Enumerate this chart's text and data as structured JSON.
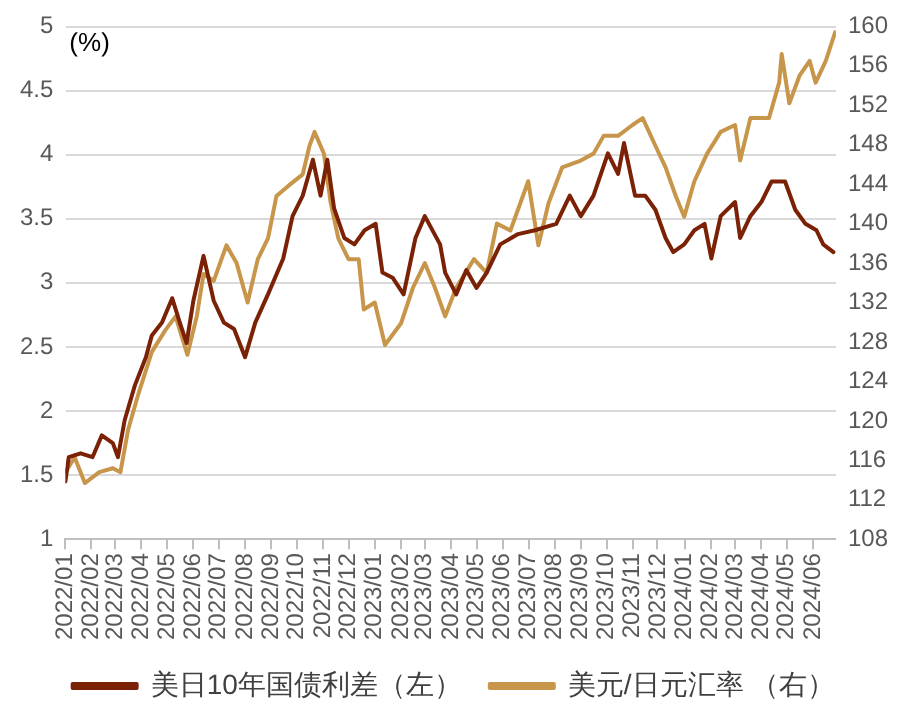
{
  "chart_data": {
    "type": "line",
    "ylabel": "(%)",
    "xlim": [
      "2022-01-01",
      "2024-06-28"
    ],
    "xticks": [
      {
        "value": "2022-01",
        "label": "2022/01"
      },
      {
        "value": "2022-02",
        "label": "2022/02"
      },
      {
        "value": "2022-03",
        "label": "2022/03"
      },
      {
        "value": "2022-04",
        "label": "2022/04"
      },
      {
        "value": "2022-05",
        "label": "2022/05"
      },
      {
        "value": "2022-06",
        "label": "2022/06"
      },
      {
        "value": "2022-07",
        "label": "2022/07"
      },
      {
        "value": "2022-08",
        "label": "2022/08"
      },
      {
        "value": "2022-09",
        "label": "2022/09"
      },
      {
        "value": "2022-10",
        "label": "2022/10"
      },
      {
        "value": "2022-11",
        "label": "2022/11"
      },
      {
        "value": "2022-12",
        "label": "2022/12"
      },
      {
        "value": "2023-01",
        "label": "2023/01"
      },
      {
        "value": "2023-02",
        "label": "2023/02"
      },
      {
        "value": "2023-03",
        "label": "2023/03"
      },
      {
        "value": "2023-04",
        "label": "2023/04"
      },
      {
        "value": "2023-05",
        "label": "2023/05"
      },
      {
        "value": "2023-06",
        "label": "2023/06"
      },
      {
        "value": "2023-07",
        "label": "2023/07"
      },
      {
        "value": "2023-08",
        "label": "2023/08"
      },
      {
        "value": "2023-09",
        "label": "2023/09"
      },
      {
        "value": "2023-10",
        "label": "2023/10"
      },
      {
        "value": "2023-11",
        "label": "2023/11"
      },
      {
        "value": "2023-12",
        "label": "2023/12"
      },
      {
        "value": "2024-01",
        "label": "2024/01"
      },
      {
        "value": "2024-02",
        "label": "2024/02"
      },
      {
        "value": "2024-03",
        "label": "2024/03"
      },
      {
        "value": "2024-04",
        "label": "2024/04"
      },
      {
        "value": "2024-05",
        "label": "2024/05"
      },
      {
        "value": "2024-06",
        "label": "2024/06"
      }
    ],
    "ylim": [
      1,
      5
    ],
    "yticks": [
      1,
      1.5,
      2,
      2.5,
      3,
      3.5,
      4,
      4.5,
      5
    ],
    "y2lim": [
      108,
      160
    ],
    "y2ticks": [
      108,
      112,
      116,
      120,
      124,
      128,
      132,
      136,
      140,
      144,
      148,
      152,
      156,
      160
    ],
    "grid": "y",
    "legend": "bottom",
    "marker": "none",
    "line_style": "solid",
    "series": [
      {
        "name": "美日10年国债利差（左）",
        "color": "#7b2106",
        "x": [
          "2022-01-01",
          "2022-01-05",
          "2022-01-19",
          "2022-02-02",
          "2022-02-13",
          "2022-02-26",
          "2022-03-04",
          "2022-03-12",
          "2022-03-24",
          "2022-04-06",
          "2022-04-13",
          "2022-04-25",
          "2022-05-07",
          "2022-05-16",
          "2022-05-24",
          "2022-06-01",
          "2022-06-13",
          "2022-06-25",
          "2022-07-07",
          "2022-07-19",
          "2022-08-01",
          "2022-08-13",
          "2022-08-28",
          "2022-09-15",
          "2022-09-26",
          "2022-10-08",
          "2022-10-20",
          "2022-10-29",
          "2022-11-06",
          "2022-11-14",
          "2022-11-26",
          "2022-12-08",
          "2022-12-20",
          "2023-01-02",
          "2023-01-10",
          "2023-01-22",
          "2023-02-04",
          "2023-02-18",
          "2023-03-01",
          "2023-03-19",
          "2023-03-25",
          "2023-04-07",
          "2023-04-19",
          "2023-05-01",
          "2023-05-13",
          "2023-05-29",
          "2023-06-19",
          "2023-07-09",
          "2023-08-03",
          "2023-08-19",
          "2023-09-01",
          "2023-09-16",
          "2023-10-03",
          "2023-10-15",
          "2023-10-22",
          "2023-11-04",
          "2023-11-16",
          "2023-11-28",
          "2023-12-10",
          "2023-12-19",
          "2024-01-01",
          "2024-01-13",
          "2024-01-25",
          "2024-02-02",
          "2024-02-13",
          "2024-03-01",
          "2024-03-07",
          "2024-03-19",
          "2024-04-01",
          "2024-04-13",
          "2024-04-29",
          "2024-05-11",
          "2024-05-23",
          "2024-06-05",
          "2024-06-13",
          "2024-06-25"
        ],
        "values": [
          1.45,
          1.64,
          1.67,
          1.64,
          1.81,
          1.75,
          1.64,
          1.93,
          2.2,
          2.42,
          2.59,
          2.69,
          2.88,
          2.69,
          2.53,
          2.86,
          3.21,
          2.86,
          2.69,
          2.64,
          2.42,
          2.69,
          2.91,
          3.19,
          3.52,
          3.68,
          3.96,
          3.68,
          3.96,
          3.58,
          3.35,
          3.3,
          3.41,
          3.46,
          3.08,
          3.04,
          2.91,
          3.35,
          3.52,
          3.3,
          3.08,
          2.91,
          3.1,
          2.96,
          3.08,
          3.3,
          3.38,
          3.41,
          3.46,
          3.68,
          3.52,
          3.68,
          4.01,
          3.85,
          4.09,
          3.68,
          3.68,
          3.57,
          3.35,
          3.24,
          3.3,
          3.41,
          3.46,
          3.19,
          3.52,
          3.63,
          3.35,
          3.52,
          3.63,
          3.79,
          3.79,
          3.57,
          3.46,
          3.41,
          3.3,
          3.24
        ]
      },
      {
        "name": "美元/日元汇率 （右）",
        "color": "#c8964a",
        "axis": "y2",
        "x": [
          "2022-01-01",
          "2022-01-12",
          "2022-01-24",
          "2022-02-10",
          "2022-02-26",
          "2022-03-07",
          "2022-03-16",
          "2022-03-28",
          "2022-04-13",
          "2022-04-29",
          "2022-05-11",
          "2022-05-25",
          "2022-06-05",
          "2022-06-13",
          "2022-06-25",
          "2022-07-10",
          "2022-07-22",
          "2022-08-04",
          "2022-08-16",
          "2022-08-28",
          "2022-09-07",
          "2022-09-22",
          "2022-10-08",
          "2022-10-16",
          "2022-10-22",
          "2022-11-02",
          "2022-11-10",
          "2022-11-19",
          "2022-12-01",
          "2022-12-13",
          "2022-12-19",
          "2023-01-01",
          "2023-01-13",
          "2023-02-01",
          "2023-02-15",
          "2023-03-01",
          "2023-03-13",
          "2023-03-25",
          "2023-04-07",
          "2023-04-28",
          "2023-05-13",
          "2023-05-25",
          "2023-06-10",
          "2023-07-01",
          "2023-07-13",
          "2023-07-25",
          "2023-08-10",
          "2023-09-01",
          "2023-09-16",
          "2023-09-28",
          "2023-10-15",
          "2023-11-01",
          "2023-11-13",
          "2023-11-28",
          "2023-12-10",
          "2023-12-22",
          "2024-01-01",
          "2024-01-13",
          "2024-01-28",
          "2024-02-13",
          "2024-03-01",
          "2024-03-07",
          "2024-03-19",
          "2024-04-10",
          "2024-04-22",
          "2024-04-25",
          "2024-05-04",
          "2024-05-16",
          "2024-05-28",
          "2024-06-04",
          "2024-06-16",
          "2024-06-27"
        ],
        "values": [
          114.8,
          116.3,
          113.7,
          114.8,
          115.2,
          114.8,
          119.1,
          122.7,
          127,
          129.2,
          130.6,
          126.7,
          130.6,
          134.9,
          134.2,
          137.8,
          136,
          132,
          136.4,
          138.5,
          142.8,
          143.9,
          145,
          147.9,
          149.3,
          147.1,
          142.1,
          138.5,
          136.4,
          136.4,
          131.3,
          132,
          127.7,
          129.9,
          133.5,
          136,
          133.5,
          130.6,
          133.5,
          136.4,
          135,
          140,
          139.3,
          144.3,
          137.8,
          142.1,
          145.7,
          146.4,
          147.1,
          148.9,
          148.9,
          150,
          150.7,
          147.9,
          145.7,
          142.8,
          140.7,
          144.3,
          147.1,
          149.3,
          150,
          146.4,
          150.7,
          150.7,
          154.3,
          157.2,
          152.2,
          155,
          156.5,
          154.3,
          156.5,
          159.4
        ]
      }
    ]
  }
}
